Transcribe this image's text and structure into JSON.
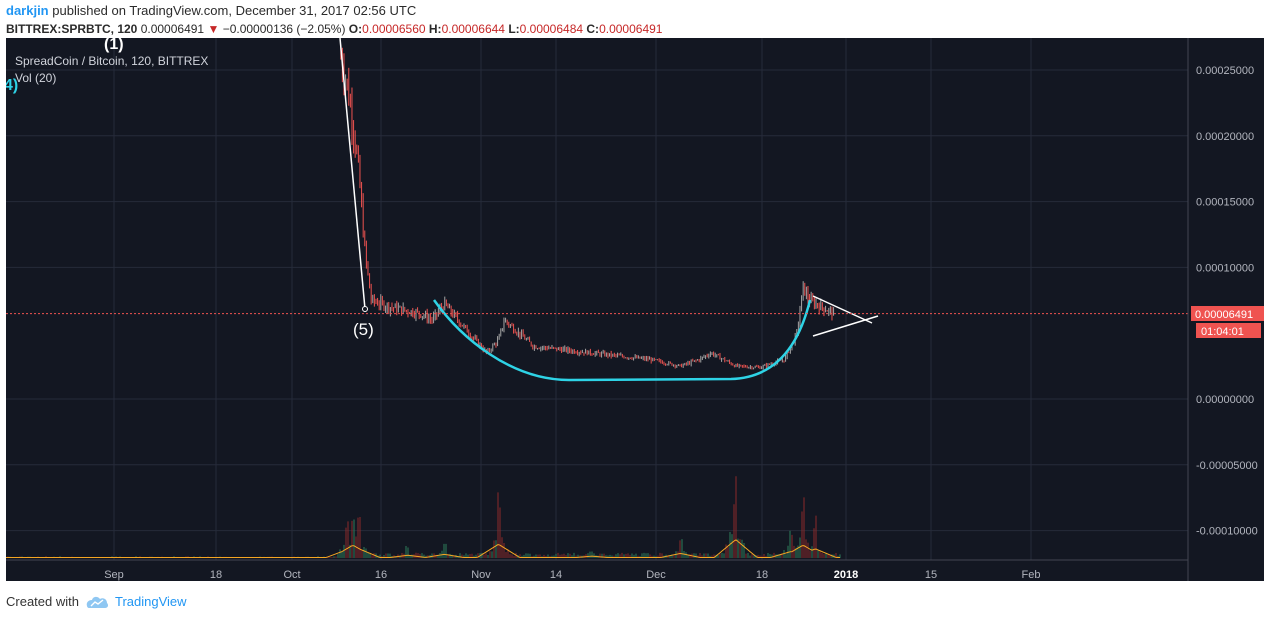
{
  "header": {
    "user": "darkjin",
    "published_text": "published on TradingView.com, December 31, 2017 02:56 UTC",
    "symbol": "BITTREX:SPRBTC, 120",
    "last": "0.00006491",
    "change_arrow": "▼",
    "change": "−0.00000136 (−2.05%)",
    "o_label": "O:",
    "o_value": "0.00006560",
    "h_label": "H:",
    "h_value": "0.00006644",
    "l_label": "L:",
    "l_value": "0.00006484",
    "c_label": "C:",
    "c_value": "0.00006491"
  },
  "legend": {
    "main": "SpreadCoin / Bitcoin, 120, BITTREX",
    "volume": "Vol (20)"
  },
  "annotations": {
    "wave_top": "(1)",
    "wave_left": "4)",
    "wave_5": "(5)"
  },
  "price_badge": "0.00006491",
  "time_badge": "01:04:01",
  "footer": {
    "created_with": "Created with",
    "brand": "TradingView"
  },
  "colors": {
    "background": "#131722",
    "grid": "#262b3a",
    "axis_text": "#b2b5be",
    "up": "#a5a5a5",
    "down": "#ef5350",
    "cup": "#2ed3e6",
    "trendline": "#ffffff",
    "price_line": "#ef5350",
    "volume_ma": "#f5a623"
  },
  "chart_data": {
    "type": "line",
    "title": "SpreadCoin / Bitcoin, 120, BITTREX",
    "xlabel": "",
    "ylabel": "",
    "x_tick_labels": [
      "Sep",
      "18",
      "Oct",
      "16",
      "Nov",
      "14",
      "Dec",
      "18",
      "2018",
      "15",
      "Feb"
    ],
    "y_tick_labels": [
      "0.00025000",
      "0.00020000",
      "0.00015000",
      "0.00010000",
      "0.00000000",
      "-0.00005000",
      "-0.00010000"
    ],
    "ylim": [
      -0.000127,
      0.000274
    ],
    "grid": true,
    "last_price": 6.491e-05,
    "series": [
      {
        "name": "SPRBTC",
        "x": [
          "2017-10-09",
          "2017-10-10",
          "2017-10-11",
          "2017-10-12",
          "2017-10-13",
          "2017-10-14",
          "2017-10-17",
          "2017-10-22",
          "2017-10-24",
          "2017-10-26",
          "2017-10-31",
          "2017-11-02",
          "2017-11-04",
          "2017-11-05",
          "2017-11-10",
          "2017-11-20",
          "2017-11-30",
          "2017-12-05",
          "2017-12-08",
          "2017-12-10",
          "2017-12-14",
          "2017-12-18",
          "2017-12-20",
          "2017-12-22",
          "2017-12-23",
          "2017-12-24",
          "2017-12-25",
          "2017-12-26",
          "2017-12-28",
          "2017-12-30"
        ],
        "values": [
          0.00026,
          0.00024,
          0.00021,
          0.00017,
          0.00011,
          7.5e-05,
          7e-05,
          6.5e-05,
          6e-05,
          7.2e-05,
          4.5e-05,
          3.5e-05,
          4.5e-05,
          6e-05,
          4e-05,
          3.5e-05,
          3e-05,
          2.5e-05,
          3e-05,
          3.5e-05,
          2.5e-05,
          2.4e-05,
          2.7e-05,
          3e-05,
          4e-05,
          5e-05,
          8.5e-05,
          7.5e-05,
          7e-05,
          6.5e-05
        ]
      },
      {
        "name": "Vol",
        "x": [
          "2017-10-10",
          "2017-10-11",
          "2017-10-12",
          "2017-10-20",
          "2017-10-26",
          "2017-11-04",
          "2017-11-20",
          "2017-12-05",
          "2017-12-14",
          "2017-12-23",
          "2017-12-25",
          "2017-12-27"
        ],
        "values": [
          0.45,
          0.7,
          0.5,
          0.15,
          0.2,
          0.75,
          0.1,
          0.25,
          1.0,
          0.35,
          0.7,
          0.5
        ]
      }
    ]
  }
}
